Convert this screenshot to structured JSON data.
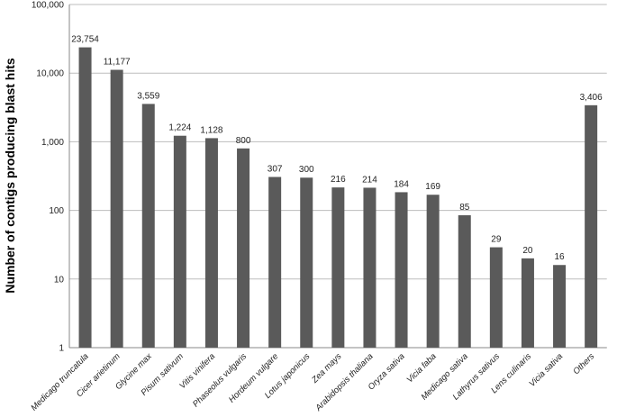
{
  "chart_data": {
    "type": "bar",
    "y_label": "Number of contigs producing blast hits",
    "categories": [
      "Medicago truncatula",
      "Cicer arietinum",
      "Glycine max",
      "Pisum sativum",
      "Vitis vinifera",
      "Phaseolus vulgaris",
      "Hordeum vulgare",
      "Lotus japonicus",
      "Zea mays",
      "Arabidopsis thaliana",
      "Oryza sativa",
      "Vicia faba",
      "Medicago sativa",
      "Lathyrus sativus",
      "Lens culinaris",
      "Vicia sativa",
      "Others"
    ],
    "values": [
      23754,
      11177,
      3559,
      1224,
      1128,
      800,
      307,
      300,
      216,
      214,
      184,
      169,
      85,
      29,
      20,
      16,
      3406
    ],
    "value_labels": [
      "23,754",
      "11,177",
      "3,559",
      "1,224",
      "1,128",
      "800",
      "307",
      "300",
      "216",
      "214",
      "184",
      "169",
      "85",
      "29",
      "20",
      "16",
      "3,406"
    ],
    "color": "#5a5a5a",
    "log_scale": true,
    "ylim": [
      1,
      100000
    ],
    "yticks": [
      1,
      10,
      100,
      {
        "value": 1000,
        "label": "1,000"
      },
      {
        "value": 10000,
        "label": "10,000"
      },
      {
        "value": 100000,
        "label": "100,000"
      }
    ],
    "grid": true
  }
}
